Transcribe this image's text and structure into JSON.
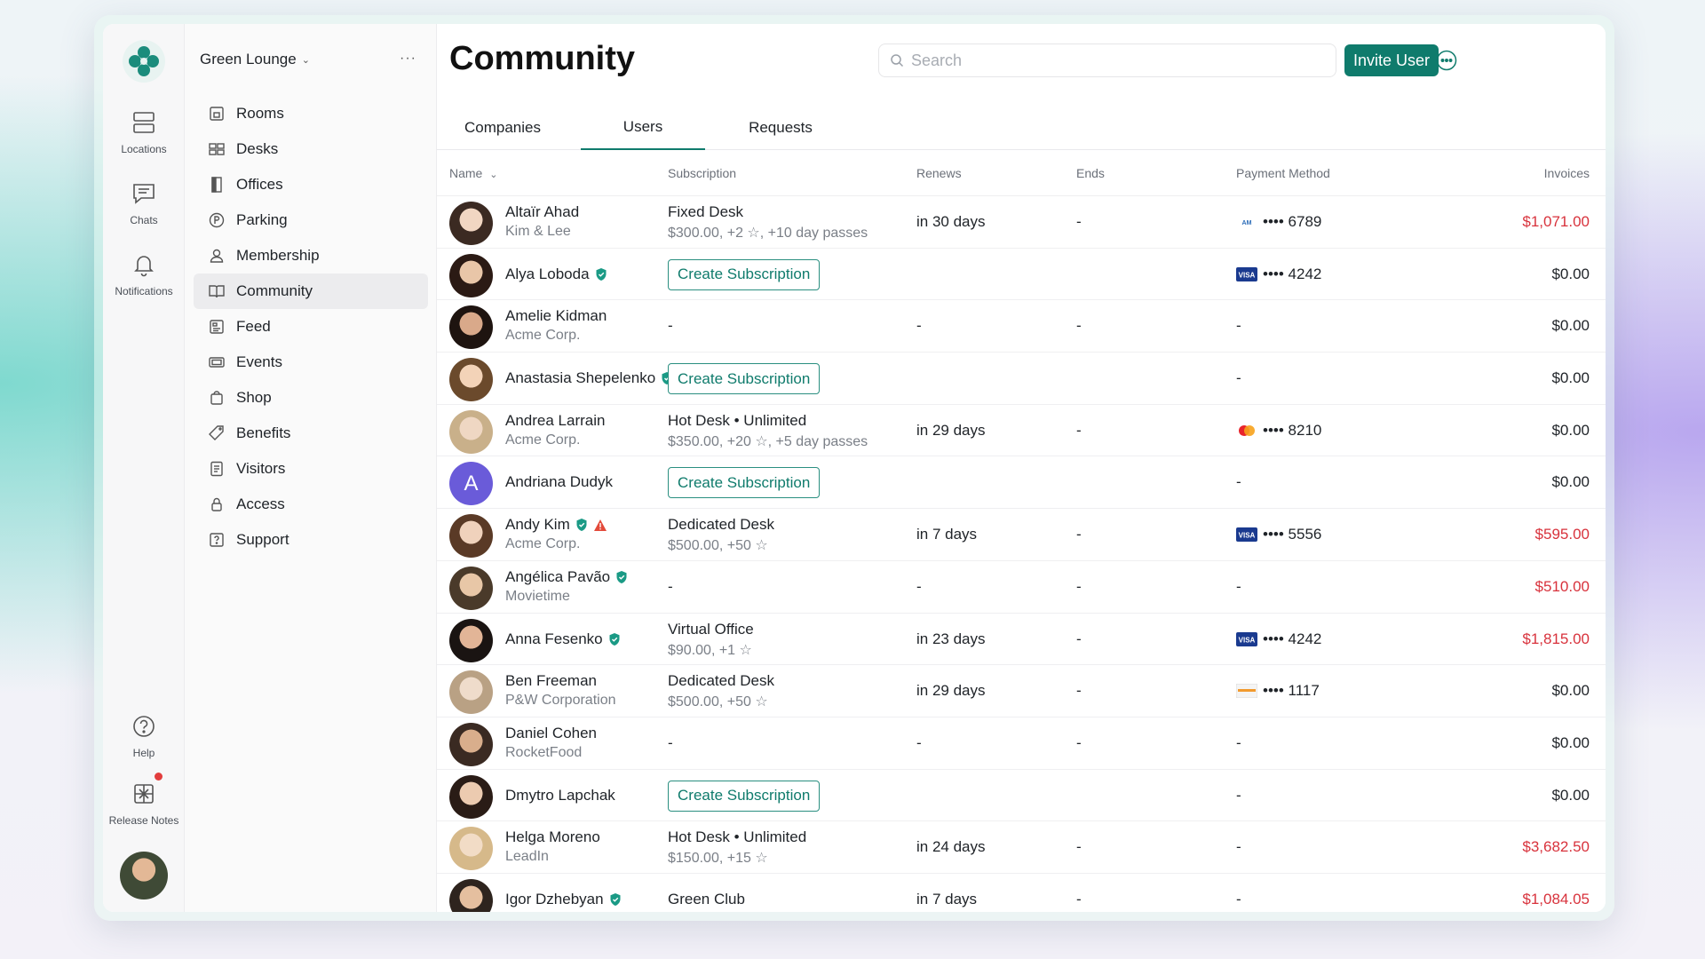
{
  "rail": {
    "items": [
      {
        "label": "Locations",
        "icon": "locations-icon"
      },
      {
        "label": "Chats",
        "icon": "chats-icon"
      },
      {
        "label": "Notifications",
        "icon": "bell-icon"
      },
      {
        "label": "Help",
        "icon": "help-icon"
      },
      {
        "label": "Release Notes",
        "icon": "gift-icon"
      }
    ]
  },
  "sidebar": {
    "workspace": "Green Lounge",
    "more": "···",
    "items": [
      {
        "label": "Rooms",
        "icon": "rooms-icon"
      },
      {
        "label": "Desks",
        "icon": "desks-icon"
      },
      {
        "label": "Offices",
        "icon": "offices-icon"
      },
      {
        "label": "Parking",
        "icon": "parking-icon"
      },
      {
        "label": "Membership",
        "icon": "membership-icon"
      },
      {
        "label": "Community",
        "icon": "community-icon",
        "active": true
      },
      {
        "label": "Feed",
        "icon": "feed-icon"
      },
      {
        "label": "Events",
        "icon": "events-icon"
      },
      {
        "label": "Shop",
        "icon": "shop-icon"
      },
      {
        "label": "Benefits",
        "icon": "benefits-icon"
      },
      {
        "label": "Visitors",
        "icon": "visitors-icon"
      },
      {
        "label": "Access",
        "icon": "lock-icon"
      },
      {
        "label": "Support",
        "icon": "support-icon"
      }
    ]
  },
  "header": {
    "title": "Community",
    "search_placeholder": "Search",
    "invite_label": "Invite User"
  },
  "tabs": [
    {
      "label": "Companies"
    },
    {
      "label": "Users",
      "active": true
    },
    {
      "label": "Requests"
    }
  ],
  "table": {
    "columns": {
      "name": "Name",
      "subscription": "Subscription",
      "renews": "Renews",
      "ends": "Ends",
      "payment": "Payment Method",
      "invoices": "Invoices"
    },
    "create_label": "Create Subscription",
    "rows": [
      {
        "name": "Altaïr Ahad",
        "company": "Kim & Lee",
        "verified": false,
        "sub": "Fixed Desk",
        "sub_detail": "$300.00, +2 ☆, +10 day passes",
        "renews": "in 30 days",
        "ends": "-",
        "card": "amex",
        "digits": "•••• 6789",
        "invoice": "$1,071.00",
        "overdue": true
      },
      {
        "name": "Alya Loboda",
        "company": "",
        "verified": true,
        "create": true,
        "renews": "",
        "ends": "",
        "card": "visa",
        "digits": "•••• 4242",
        "invoice": "$0.00",
        "overdue": false
      },
      {
        "name": "Amelie Kidman",
        "company": "Acme Corp.",
        "verified": false,
        "sub": "-",
        "sub_detail": "",
        "renews": "-",
        "ends": "-",
        "card": "",
        "digits": "-",
        "invoice": "$0.00",
        "overdue": false
      },
      {
        "name": "Anastasia Shepelenko",
        "company": "",
        "verified": true,
        "create": true,
        "renews": "",
        "ends": "",
        "card": "",
        "digits": "-",
        "invoice": "$0.00",
        "overdue": false
      },
      {
        "name": "Andrea Larrain",
        "company": "Acme Corp.",
        "verified": false,
        "sub": "Hot Desk • Unlimited",
        "sub_detail": "$350.00, +20 ☆, +5 day passes",
        "renews": "in 29 days",
        "ends": "-",
        "card": "mastercard",
        "digits": "•••• 8210",
        "invoice": "$0.00",
        "overdue": false
      },
      {
        "name": "Andriana Dudyk",
        "company": "",
        "verified": false,
        "letter": "A",
        "create": true,
        "renews": "",
        "ends": "",
        "card": "",
        "digits": "-",
        "invoice": "$0.00",
        "overdue": false
      },
      {
        "name": "Andy Kim",
        "company": "Acme Corp.",
        "verified": true,
        "warning": true,
        "sub": "Dedicated Desk",
        "sub_detail": "$500.00, +50 ☆",
        "renews": "in 7 days",
        "ends": "-",
        "card": "visa",
        "digits": "•••• 5556",
        "invoice": "$595.00",
        "overdue": true
      },
      {
        "name": "Angélica Pavão",
        "company": "Movietime",
        "verified": true,
        "sub": "-",
        "sub_detail": "",
        "renews": "-",
        "ends": "-",
        "card": "",
        "digits": "-",
        "invoice": "$510.00",
        "overdue": true
      },
      {
        "name": "Anna Fesenko",
        "company": "",
        "verified": true,
        "sub": "Virtual Office",
        "sub_detail": "$90.00, +1 ☆",
        "renews": "in 23 days",
        "ends": "-",
        "card": "visa",
        "digits": "•••• 4242",
        "invoice": "$1,815.00",
        "overdue": true
      },
      {
        "name": "Ben Freeman",
        "company": "P&W Corporation",
        "verified": false,
        "sub": "Dedicated Desk",
        "sub_detail": "$500.00, +50 ☆",
        "renews": "in 29 days",
        "ends": "-",
        "card": "discover",
        "digits": "•••• 1117",
        "invoice": "$0.00",
        "overdue": false
      },
      {
        "name": "Daniel Cohen",
        "company": "RocketFood",
        "verified": false,
        "sub": "-",
        "sub_detail": "",
        "renews": "-",
        "ends": "-",
        "card": "",
        "digits": "-",
        "invoice": "$0.00",
        "overdue": false
      },
      {
        "name": "Dmytro Lapchak",
        "company": "",
        "verified": false,
        "create": true,
        "renews": "",
        "ends": "",
        "card": "",
        "digits": "-",
        "invoice": "$0.00",
        "overdue": false
      },
      {
        "name": "Helga Moreno",
        "company": "LeadIn",
        "verified": false,
        "sub": "Hot Desk • Unlimited",
        "sub_detail": "$150.00, +15 ☆",
        "renews": "in 24 days",
        "ends": "-",
        "card": "",
        "digits": "-",
        "invoice": "$3,682.50",
        "overdue": true
      },
      {
        "name": "Igor Dzhebyan",
        "company": "",
        "verified": true,
        "sub": "Green Club",
        "sub_detail": "",
        "renews": "in 7 days",
        "ends": "-",
        "card": "",
        "digits": "-",
        "invoice": "$1,084.05",
        "overdue": true
      }
    ]
  },
  "colors": {
    "accent": "#0f7b6c",
    "overdue": "#d8323c",
    "badge": "#1a9a85",
    "warning": "#e34a3a"
  }
}
